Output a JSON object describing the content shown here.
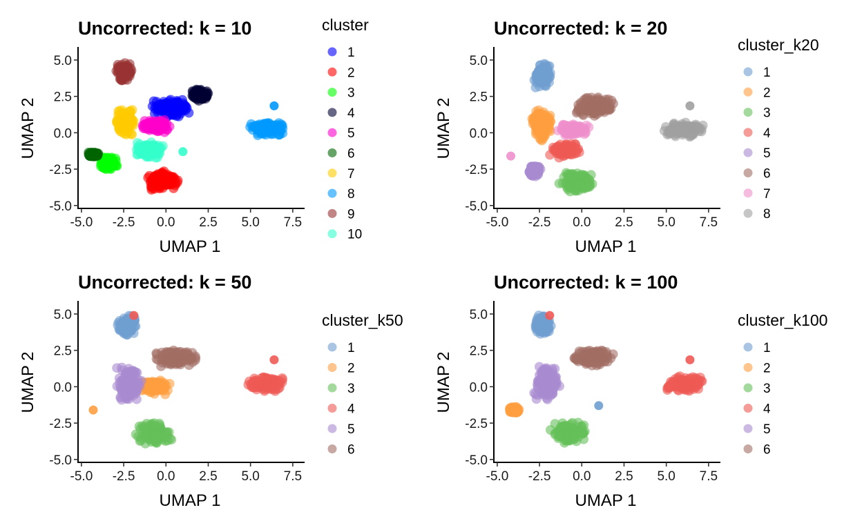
{
  "chart_data": [
    {
      "type": "scatter",
      "title": "Uncorrected: k = 10",
      "xlabel": "UMAP 1",
      "ylabel": "UMAP 2",
      "xlim": [
        -5.2,
        8.2
      ],
      "ylim": [
        -5.2,
        5.9
      ],
      "xticks": [
        -5.0,
        -2.5,
        0.0,
        2.5,
        5.0,
        7.5
      ],
      "xtick_labels": [
        "-5.0",
        "-2.5",
        "0.0",
        "2.5",
        "5.0",
        "7.5"
      ],
      "yticks": [
        -5.0,
        -2.5,
        0.0,
        2.5,
        5.0
      ],
      "ytick_labels": [
        "-5.0",
        "-2.5",
        "0.0",
        "2.5",
        "5.0"
      ],
      "legend_title": "cluster",
      "legend_position": "right",
      "grid": false,
      "clusters": [
        {
          "label": "1",
          "color": "#0000ff",
          "center": [
            0.3,
            1.7
          ],
          "spread": [
            1.3,
            0.75
          ]
        },
        {
          "label": "2",
          "color": "#ff0000",
          "center": [
            -0.2,
            -3.3
          ],
          "spread": [
            1.1,
            0.75
          ]
        },
        {
          "label": "3",
          "color": "#00ff00",
          "center": [
            -3.4,
            -2.1
          ],
          "spread": [
            0.6,
            0.6
          ]
        },
        {
          "label": "4",
          "color": "#000033",
          "center": [
            2.0,
            2.6
          ],
          "spread": [
            0.6,
            0.45
          ]
        },
        {
          "label": "5",
          "color": "#ff00cc",
          "center": [
            -0.6,
            0.5
          ],
          "spread": [
            1.0,
            0.55
          ]
        },
        {
          "label": "6",
          "color": "#006600",
          "center": [
            -4.3,
            -1.5
          ],
          "spread": [
            0.4,
            0.2
          ]
        },
        {
          "label": "7",
          "color": "#ffcc00",
          "center": [
            -2.4,
            0.8
          ],
          "spread": [
            0.7,
            1.1
          ]
        },
        {
          "label": "8",
          "color": "#0099ff",
          "center": [
            6.0,
            0.3
          ],
          "spread": [
            1.3,
            0.6
          ]
        },
        {
          "label": "9",
          "color": "#993333",
          "center": [
            -2.5,
            4.2
          ],
          "spread": [
            0.55,
            0.75
          ]
        },
        {
          "label": "10",
          "color": "#33ffcc",
          "center": [
            -1.0,
            -1.2
          ],
          "spread": [
            1.0,
            0.6
          ]
        }
      ],
      "outliers": [
        {
          "x": 6.4,
          "y": 1.85,
          "cluster": "8"
        },
        {
          "x": 1.0,
          "y": -1.3,
          "cluster": "10"
        }
      ]
    },
    {
      "type": "scatter",
      "title": "Uncorrected: k = 20",
      "xlabel": "UMAP 1",
      "ylabel": "UMAP 2",
      "xlim": [
        -5.2,
        8.2
      ],
      "ylim": [
        -5.2,
        5.9
      ],
      "xticks": [
        -5.0,
        -2.5,
        0.0,
        2.5,
        5.0,
        7.5
      ],
      "xtick_labels": [
        "-5.0",
        "-2.5",
        "0.0",
        "2.5",
        "5.0",
        "7.5"
      ],
      "yticks": [
        -5.0,
        -2.5,
        0.0,
        2.5,
        5.0
      ],
      "ytick_labels": [
        "-5.0",
        "-2.5",
        "0.0",
        "2.5",
        "5.0"
      ],
      "legend_title": "cluster_k20",
      "legend_position": "right",
      "grid": false,
      "clusters": [
        {
          "label": "1",
          "color": "#6f9fd0",
          "center": [
            -2.3,
            4.0
          ],
          "spread": [
            0.6,
            1.0
          ]
        },
        {
          "label": "2",
          "color": "#ff9f40",
          "center": [
            -2.4,
            0.6
          ],
          "spread": [
            0.8,
            1.2
          ]
        },
        {
          "label": "3",
          "color": "#66bf5a",
          "center": [
            -0.3,
            -3.4
          ],
          "spread": [
            1.2,
            0.8
          ]
        },
        {
          "label": "4",
          "color": "#ef5a55",
          "center": [
            -1.0,
            -1.2
          ],
          "spread": [
            1.0,
            0.55
          ]
        },
        {
          "label": "5",
          "color": "#a98ad0",
          "center": [
            -2.8,
            -2.6
          ],
          "spread": [
            0.4,
            0.5
          ]
        },
        {
          "label": "6",
          "color": "#a26e64",
          "center": [
            0.7,
            1.8
          ],
          "spread": [
            1.4,
            0.8
          ]
        },
        {
          "label": "7",
          "color": "#ee90cc",
          "center": [
            -0.5,
            0.2
          ],
          "spread": [
            1.2,
            0.5
          ]
        },
        {
          "label": "8",
          "color": "#a0a0a0",
          "center": [
            6.0,
            0.2
          ],
          "spread": [
            1.4,
            0.6
          ]
        }
      ],
      "outliers": [
        {
          "x": 6.4,
          "y": 1.85,
          "cluster": "8"
        },
        {
          "x": -4.2,
          "y": -1.6,
          "cluster": "7"
        }
      ]
    },
    {
      "type": "scatter",
      "title": "Uncorrected: k = 50",
      "xlabel": "UMAP 1",
      "ylabel": "UMAP 2",
      "xlim": [
        -5.2,
        8.2
      ],
      "ylim": [
        -5.2,
        5.9
      ],
      "xticks": [
        -5.0,
        -2.5,
        0.0,
        2.5,
        5.0,
        7.5
      ],
      "xtick_labels": [
        "-5.0",
        "-2.5",
        "0.0",
        "2.5",
        "5.0",
        "7.5"
      ],
      "yticks": [
        -5.0,
        -2.5,
        0.0,
        2.5,
        5.0
      ],
      "ytick_labels": [
        "-5.0",
        "-2.5",
        "0.0",
        "2.5",
        "5.0"
      ],
      "legend_title": "cluster_k50",
      "legend_position": "right",
      "grid": false,
      "clusters": [
        {
          "label": "1",
          "color": "#6f9fd0",
          "center": [
            -2.3,
            4.2
          ],
          "spread": [
            0.6,
            0.8
          ]
        },
        {
          "label": "2",
          "color": "#ff9f40",
          "center": [
            -0.7,
            0.0
          ],
          "spread": [
            1.0,
            0.6
          ]
        },
        {
          "label": "3",
          "color": "#66bf5a",
          "center": [
            -0.7,
            -3.2
          ],
          "spread": [
            1.3,
            0.9
          ]
        },
        {
          "label": "4",
          "color": "#ef5a55",
          "center": [
            6.0,
            0.2
          ],
          "spread": [
            1.4,
            0.6
          ]
        },
        {
          "label": "5",
          "color": "#a98ad0",
          "center": [
            -2.2,
            0.2
          ],
          "spread": [
            0.8,
            1.5
          ]
        },
        {
          "label": "6",
          "color": "#a26e64",
          "center": [
            0.6,
            2.0
          ],
          "spread": [
            1.4,
            0.7
          ]
        }
      ],
      "outliers": [
        {
          "x": 6.4,
          "y": 1.85,
          "cluster": "4"
        },
        {
          "x": -1.9,
          "y": 4.9,
          "cluster": "4"
        },
        {
          "x": -4.3,
          "y": -1.6,
          "cluster": "2"
        }
      ]
    },
    {
      "type": "scatter",
      "title": "Uncorrected: k = 100",
      "xlabel": "UMAP 1",
      "ylabel": "UMAP 2",
      "xlim": [
        -5.2,
        8.2
      ],
      "ylim": [
        -5.2,
        5.9
      ],
      "xticks": [
        -5.0,
        -2.5,
        0.0,
        2.5,
        5.0,
        7.5
      ],
      "xtick_labels": [
        "-5.0",
        "-2.5",
        "0.0",
        "2.5",
        "5.0",
        "7.5"
      ],
      "yticks": [
        -5.0,
        -2.5,
        0.0,
        2.5,
        5.0
      ],
      "ytick_labels": [
        "-5.0",
        "-2.5",
        "0.0",
        "2.5",
        "5.0"
      ],
      "legend_title": "cluster_k100",
      "legend_position": "right",
      "grid": false,
      "clusters": [
        {
          "label": "1",
          "color": "#6f9fd0",
          "center": [
            -2.3,
            4.2
          ],
          "spread": [
            0.6,
            0.8
          ]
        },
        {
          "label": "2",
          "color": "#ff9f40",
          "center": [
            -4.0,
            -1.6
          ],
          "spread": [
            0.4,
            0.25
          ]
        },
        {
          "label": "3",
          "color": "#66bf5a",
          "center": [
            -0.7,
            -3.2
          ],
          "spread": [
            1.3,
            0.9
          ]
        },
        {
          "label": "4",
          "color": "#ef5a55",
          "center": [
            6.0,
            0.2
          ],
          "spread": [
            1.4,
            0.6
          ]
        },
        {
          "label": "5",
          "color": "#a98ad0",
          "center": [
            -2.1,
            0.3
          ],
          "spread": [
            0.9,
            1.5
          ]
        },
        {
          "label": "6",
          "color": "#a26e64",
          "center": [
            0.6,
            2.0
          ],
          "spread": [
            1.4,
            0.7
          ]
        }
      ],
      "outliers": [
        {
          "x": 6.4,
          "y": 1.85,
          "cluster": "4"
        },
        {
          "x": -1.9,
          "y": 4.9,
          "cluster": "4"
        },
        {
          "x": 1.0,
          "y": -1.3,
          "cluster": "1"
        }
      ]
    }
  ]
}
